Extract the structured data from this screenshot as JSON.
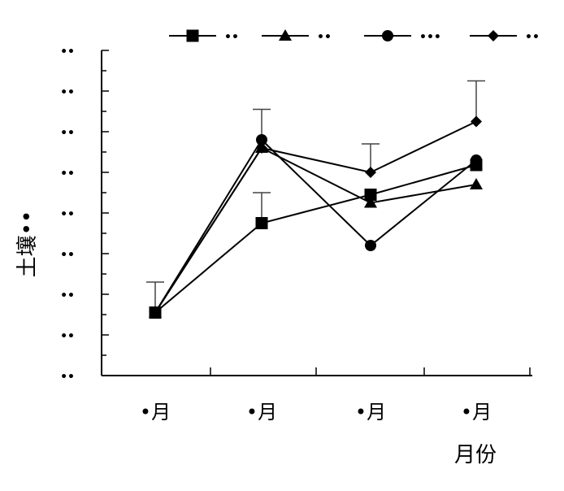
{
  "chart_data": {
    "type": "line",
    "title": "",
    "xlabel": "月份",
    "ylabel": "土壤••",
    "categories": [
      "•月",
      "•月",
      "•月",
      "•月"
    ],
    "ylim": [
      0,
      8
    ],
    "y_ticks": [
      "••",
      "••",
      "••",
      "••",
      "••",
      "••",
      "••",
      "••",
      "••"
    ],
    "grid": false,
    "legend_position": "top",
    "series": [
      {
        "name": "••",
        "marker": "square",
        "values": [
          1.55,
          3.75,
          4.45,
          5.18
        ],
        "errors": [
          0.75,
          0.75,
          0,
          0
        ]
      },
      {
        "name": "••",
        "marker": "triangle",
        "values": [
          1.55,
          5.6,
          4.25,
          4.7
        ],
        "errors": [
          0,
          0,
          0,
          0
        ]
      },
      {
        "name": "•••",
        "marker": "circle",
        "values": [
          1.55,
          5.8,
          3.2,
          5.3
        ],
        "errors": [
          0,
          0,
          0,
          0
        ]
      },
      {
        "name": "••",
        "marker": "diamond",
        "values": [
          1.55,
          5.6,
          5.0,
          6.25
        ],
        "errors": [
          0,
          0.95,
          0.7,
          1.0
        ]
      }
    ]
  }
}
